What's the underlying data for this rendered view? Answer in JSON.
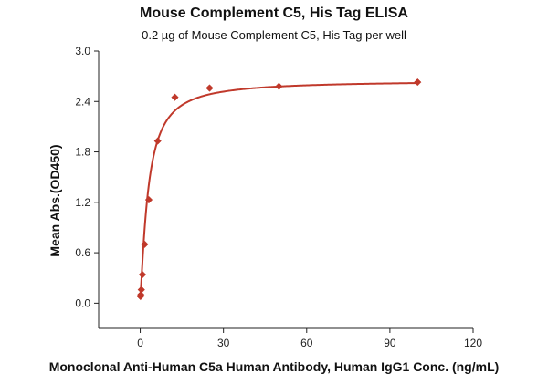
{
  "chart_data": {
    "type": "scatter",
    "title": "Mouse Complement C5, His Tag ELISA",
    "subtitle": "0.2 µg of Mouse Complement C5, His Tag per well",
    "xlabel": "Monoclonal Anti-Human C5a Human Antibody, Human IgG1 Conc. (ng/mL)",
    "ylabel": "Mean Abs.(OD450)",
    "xlim": [
      -15,
      120
    ],
    "ylim": [
      -0.3,
      3.0
    ],
    "xticks": [
      0,
      30,
      60,
      90,
      120
    ],
    "yticks": [
      0.0,
      0.6,
      1.2,
      1.8,
      2.4,
      3.0
    ],
    "ytick_labels": [
      "0.0",
      "0.6",
      "1.2",
      "1.8",
      "2.4",
      "3.0"
    ],
    "grid": false,
    "colors": {
      "series": "#c0392b"
    },
    "series": [
      {
        "marker": "diamond",
        "fit": "4PL curve",
        "x": [
          0.1,
          0.2,
          0.4,
          0.8,
          1.6,
          3.1,
          6.3,
          12.5,
          25,
          50,
          100
        ],
        "y": [
          0.08,
          0.1,
          0.16,
          0.34,
          0.7,
          1.23,
          1.93,
          2.45,
          2.56,
          2.58,
          2.63
        ]
      }
    ]
  }
}
